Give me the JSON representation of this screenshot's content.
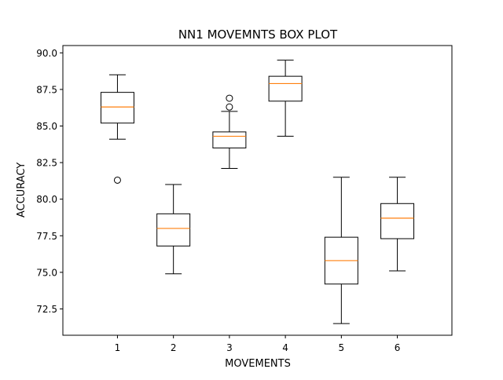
{
  "chart_data": {
    "type": "box",
    "title": "NN1 MOVEMNTS BOX PLOT",
    "xlabel": "MOVEMENTS",
    "ylabel": "ACCURACY",
    "ylim": [
      70.7,
      90.5
    ],
    "categories": [
      "1",
      "2",
      "3",
      "4",
      "5",
      "6"
    ],
    "y_ticks": [
      72.5,
      75.0,
      77.5,
      80.0,
      82.5,
      85.0,
      87.5,
      90.0
    ],
    "y_tick_labels": [
      "72.5",
      "75.0",
      "77.5",
      "80.0",
      "82.5",
      "85.0",
      "87.5",
      "90.0"
    ],
    "grid": false,
    "boxes": [
      {
        "category": "1",
        "whisker_low": 84.1,
        "q1": 85.2,
        "median": 86.3,
        "q3": 87.3,
        "whisker_high": 88.5,
        "outliers": [
          81.3
        ]
      },
      {
        "category": "2",
        "whisker_low": 74.9,
        "q1": 76.8,
        "median": 78.0,
        "q3": 79.0,
        "whisker_high": 81.0,
        "outliers": []
      },
      {
        "category": "3",
        "whisker_low": 82.1,
        "q1": 83.5,
        "median": 84.3,
        "q3": 84.6,
        "whisker_high": 86.0,
        "outliers": [
          86.3,
          86.9
        ]
      },
      {
        "category": "4",
        "whisker_low": 84.3,
        "q1": 86.7,
        "median": 87.9,
        "q3": 88.4,
        "whisker_high": 89.5,
        "outliers": []
      },
      {
        "category": "5",
        "whisker_low": 71.5,
        "q1": 74.2,
        "median": 75.8,
        "q3": 77.4,
        "whisker_high": 81.5,
        "outliers": []
      },
      {
        "category": "6",
        "whisker_low": 75.1,
        "q1": 77.3,
        "median": 78.7,
        "q3": 79.7,
        "whisker_high": 81.5,
        "outliers": []
      }
    ],
    "colors": {
      "box": "#000000",
      "median": "#ff7f0e",
      "axis": "#000000",
      "background": "#ffffff"
    }
  }
}
